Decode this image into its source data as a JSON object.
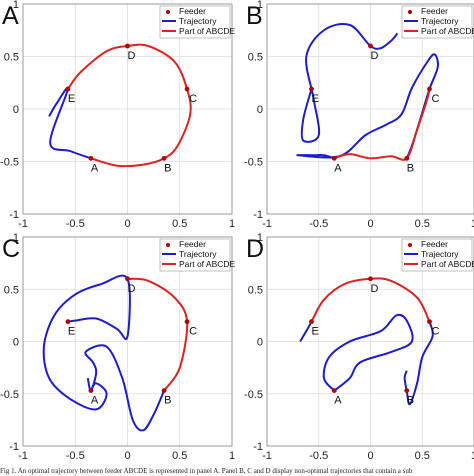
{
  "chart_data": [
    {
      "type": "line",
      "panel": "A",
      "xlim": [
        -1,
        1
      ],
      "ylim": [
        -1,
        1
      ],
      "xticks": [
        "-1",
        "-0.5",
        "0",
        "0.5",
        "1"
      ],
      "yticks": [
        "-1",
        "-0.5",
        "0",
        "0.5",
        "1"
      ],
      "legend": [
        "Feeder",
        "Trajectory",
        "Part of ABCDE"
      ],
      "legend_position": "top-right",
      "feeders": [
        {
          "label": "A",
          "x": -0.35,
          "y": -0.47
        },
        {
          "label": "B",
          "x": 0.35,
          "y": -0.47
        },
        {
          "label": "C",
          "x": 0.57,
          "y": 0.19
        },
        {
          "label": "D",
          "x": 0.0,
          "y": 0.6
        },
        {
          "label": "E",
          "x": -0.57,
          "y": 0.19
        }
      ],
      "trajectory": [
        [
          -0.75,
          -0.07
        ],
        [
          -0.68,
          0.05
        ],
        [
          -0.57,
          0.19
        ],
        [
          -0.74,
          -0.32
        ],
        [
          -0.55,
          -0.4
        ],
        [
          -0.35,
          -0.47
        ]
      ],
      "abcde_path": [
        [
          -0.35,
          -0.47
        ],
        [
          -0.1,
          -0.54
        ],
        [
          0.15,
          -0.53
        ],
        [
          0.35,
          -0.47
        ],
        [
          0.48,
          -0.35
        ],
        [
          0.6,
          -0.05
        ],
        [
          0.57,
          0.19
        ],
        [
          0.45,
          0.45
        ],
        [
          0.2,
          0.6
        ],
        [
          0.0,
          0.6
        ],
        [
          -0.2,
          0.55
        ],
        [
          -0.45,
          0.35
        ],
        [
          -0.57,
          0.19
        ]
      ]
    },
    {
      "type": "line",
      "panel": "B",
      "xlim": [
        -1,
        1
      ],
      "ylim": [
        -1,
        1
      ],
      "xticks": [
        "-1",
        "-0.5",
        "0",
        "0.5",
        "1"
      ],
      "yticks": [
        "-1",
        "-0.5",
        "0",
        "0.5",
        "1"
      ],
      "legend": [
        "Feeder",
        "Trajectory",
        "Part of ABCDE"
      ],
      "legend_position": "top-right",
      "feeders": [
        {
          "label": "A",
          "x": -0.35,
          "y": -0.47
        },
        {
          "label": "B",
          "x": 0.35,
          "y": -0.47
        },
        {
          "label": "C",
          "x": 0.57,
          "y": 0.19
        },
        {
          "label": "D",
          "x": 0.0,
          "y": 0.6
        },
        {
          "label": "E",
          "x": -0.57,
          "y": 0.19
        }
      ],
      "trajectory": [
        [
          -0.35,
          -0.47
        ],
        [
          -0.45,
          -0.44
        ],
        [
          -0.55,
          -0.44
        ],
        [
          -0.7,
          -0.44
        ],
        [
          -0.3,
          -0.45
        ],
        [
          -0.05,
          -0.25
        ],
        [
          0.15,
          -0.15
        ],
        [
          0.3,
          -0.05
        ],
        [
          0.4,
          0.2
        ],
        [
          0.55,
          0.45
        ],
        [
          0.62,
          0.52
        ],
        [
          0.65,
          0.4
        ],
        [
          0.57,
          0.19
        ],
        [
          0.48,
          -0.1
        ],
        [
          0.4,
          -0.35
        ],
        [
          0.35,
          -0.47
        ]
      ],
      "trajectory_2": [
        [
          -0.57,
          0.19
        ],
        [
          -0.65,
          -0.1
        ],
        [
          -0.65,
          -0.3
        ],
        [
          -0.5,
          -0.25
        ],
        [
          -0.55,
          0.1
        ],
        [
          -0.62,
          0.5
        ],
        [
          -0.45,
          0.75
        ],
        [
          -0.2,
          0.8
        ],
        [
          0.0,
          0.6
        ],
        [
          0.1,
          0.58
        ],
        [
          0.2,
          0.65
        ],
        [
          0.26,
          0.72
        ]
      ],
      "abcde_path": [
        [
          -0.35,
          -0.47
        ],
        [
          -0.2,
          -0.43
        ],
        [
          0.0,
          -0.47
        ],
        [
          0.2,
          -0.45
        ],
        [
          0.35,
          -0.47
        ],
        [
          0.45,
          -0.2
        ],
        [
          0.55,
          0.1
        ],
        [
          0.57,
          0.19
        ]
      ]
    },
    {
      "type": "line",
      "panel": "C",
      "xlim": [
        -1,
        1
      ],
      "ylim": [
        -1,
        1
      ],
      "xticks": [
        "-1",
        "-0.5",
        "0",
        "0.5",
        "1"
      ],
      "yticks": [
        "-1",
        "-0.5",
        "0",
        "0.5",
        "1"
      ],
      "legend": [
        "Feeder",
        "Trajectory",
        "Part of ABCDE"
      ],
      "legend_position": "top-right",
      "feeders": [
        {
          "label": "A",
          "x": -0.35,
          "y": -0.47
        },
        {
          "label": "B",
          "x": 0.35,
          "y": -0.47
        },
        {
          "label": "C",
          "x": 0.57,
          "y": 0.19
        },
        {
          "label": "D",
          "x": 0.0,
          "y": 0.6
        },
        {
          "label": "E",
          "x": -0.57,
          "y": 0.19
        }
      ],
      "trajectory": [
        [
          -0.38,
          -0.35
        ],
        [
          -0.35,
          -0.47
        ],
        [
          -0.3,
          -0.3
        ],
        [
          -0.33,
          -0.2
        ],
        [
          -0.4,
          -0.1
        ],
        [
          -0.2,
          -0.05
        ],
        [
          -0.05,
          -0.35
        ],
        [
          0.05,
          -0.75
        ],
        [
          0.15,
          -0.85
        ],
        [
          0.25,
          -0.7
        ],
        [
          0.35,
          -0.47
        ]
      ],
      "trajectory_2": [
        [
          -0.57,
          0.19
        ],
        [
          -0.5,
          0.2
        ],
        [
          -0.3,
          0.22
        ],
        [
          -0.1,
          0.12
        ],
        [
          0.0,
          0.05
        ],
        [
          0.0,
          0.6
        ],
        [
          -0.25,
          0.55
        ],
        [
          -0.5,
          0.45
        ],
        [
          -0.7,
          0.25
        ],
        [
          -0.8,
          -0.05
        ],
        [
          -0.75,
          -0.35
        ],
        [
          -0.55,
          -0.55
        ],
        [
          -0.3,
          -0.65
        ],
        [
          -0.2,
          -0.5
        ],
        [
          -0.3,
          -0.4
        ],
        [
          -0.35,
          -0.47
        ]
      ],
      "abcde_path": [
        [
          0.35,
          -0.47
        ],
        [
          0.5,
          -0.25
        ],
        [
          0.57,
          0.19
        ],
        [
          0.45,
          0.42
        ],
        [
          0.2,
          0.58
        ],
        [
          0.0,
          0.6
        ]
      ]
    },
    {
      "type": "line",
      "panel": "D",
      "xlim": [
        -1,
        1
      ],
      "ylim": [
        -1,
        1
      ],
      "xticks": [
        "-1",
        "-0.5",
        "0",
        "0.5",
        "1"
      ],
      "yticks": [
        "-1",
        "-0.5",
        "0",
        "0.5",
        "1"
      ],
      "legend": [
        "Feeder",
        "Trajectory",
        "Part of ABCDE"
      ],
      "legend_position": "top-right",
      "feeders": [
        {
          "label": "A",
          "x": -0.35,
          "y": -0.47
        },
        {
          "label": "B",
          "x": 0.35,
          "y": -0.47
        },
        {
          "label": "C",
          "x": 0.57,
          "y": 0.19
        },
        {
          "label": "D",
          "x": 0.0,
          "y": 0.6
        },
        {
          "label": "E",
          "x": -0.57,
          "y": 0.19
        }
      ],
      "trajectory": [
        [
          -0.35,
          -0.47
        ],
        [
          -0.45,
          -0.35
        ],
        [
          -0.4,
          -0.15
        ],
        [
          -0.2,
          0.0
        ],
        [
          0.1,
          0.1
        ],
        [
          0.25,
          0.25
        ],
        [
          0.35,
          0.2
        ],
        [
          0.4,
          0.0
        ],
        [
          0.2,
          -0.1
        ],
        [
          -0.1,
          -0.2
        ],
        [
          -0.2,
          -0.35
        ],
        [
          -0.35,
          -0.47
        ]
      ],
      "trajectory_2": [
        [
          0.57,
          0.19
        ],
        [
          0.6,
          0.05
        ],
        [
          0.5,
          -0.15
        ],
        [
          0.45,
          -0.4
        ],
        [
          0.38,
          -0.6
        ],
        [
          0.35,
          -0.47
        ],
        [
          0.33,
          -0.35
        ],
        [
          0.35,
          -0.28
        ]
      ],
      "trajectory_3": [
        [
          -0.57,
          0.19
        ],
        [
          -0.62,
          0.1
        ],
        [
          -0.68,
          0.0
        ]
      ],
      "abcde_path": [
        [
          -0.57,
          0.19
        ],
        [
          -0.45,
          0.4
        ],
        [
          -0.25,
          0.55
        ],
        [
          0.0,
          0.6
        ],
        [
          0.2,
          0.58
        ],
        [
          0.45,
          0.42
        ],
        [
          0.57,
          0.19
        ]
      ]
    }
  ],
  "caption": "Fig 1.   An optimal trajectory between feeder ABCDE is represented in panel A. Panel B, C and D display non-optimal trajectories that contain a sub"
}
